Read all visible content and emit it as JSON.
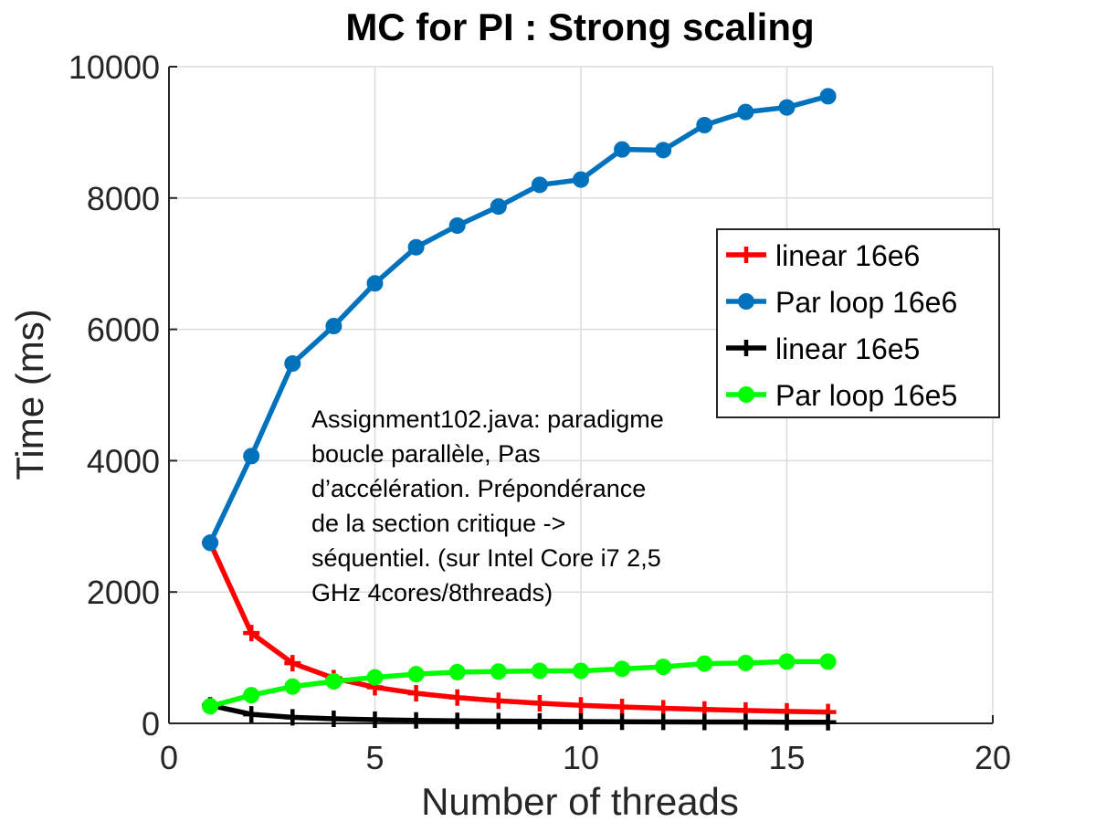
{
  "chart_data": {
    "type": "line",
    "title": "MC for PI : Strong scaling",
    "xlabel": "Number of threads",
    "ylabel": "Time (ms)",
    "xlim": [
      0,
      20
    ],
    "ylim": [
      0,
      10000
    ],
    "xticks": [
      0,
      5,
      10,
      15,
      20
    ],
    "yticks": [
      0,
      2000,
      4000,
      6000,
      8000,
      10000
    ],
    "grid": true,
    "legend_position": "upper-right",
    "x": [
      1,
      2,
      3,
      4,
      5,
      6,
      7,
      8,
      9,
      10,
      11,
      12,
      13,
      14,
      15,
      16
    ],
    "series": [
      {
        "name": "linear 16e6",
        "color": "#ff0000",
        "marker": "plus",
        "values": [
          2750,
          1375,
          917,
          688,
          550,
          458,
          393,
          344,
          306,
          275,
          250,
          229,
          212,
          196,
          183,
          172
        ]
      },
      {
        "name": "Par loop 16e6",
        "color": "#0072bd",
        "marker": "circle",
        "values": [
          2750,
          4070,
          5480,
          6050,
          6700,
          7250,
          7580,
          7870,
          8200,
          8280,
          8740,
          8730,
          9110,
          9310,
          9380,
          9550
        ]
      },
      {
        "name": "linear 16e5",
        "color": "#000000",
        "marker": "plus",
        "values": [
          275,
          138,
          92,
          69,
          55,
          46,
          39,
          34,
          31,
          28,
          25,
          23,
          21,
          20,
          18,
          17
        ]
      },
      {
        "name": "Par loop 16e5",
        "color": "#00ff00",
        "marker": "circle",
        "values": [
          260,
          430,
          560,
          640,
          700,
          750,
          780,
          790,
          800,
          800,
          830,
          860,
          910,
          920,
          940,
          940
        ]
      }
    ],
    "annotation": [
      "Assignment102.java: paradigme",
      "boucle parallèle, Pas",
      "d’accélération. Prépondérance",
      "de la section critique ->",
      "séquentiel. (sur  Intel Core i7 2,5",
      "GHz 4cores/8threads)"
    ]
  }
}
